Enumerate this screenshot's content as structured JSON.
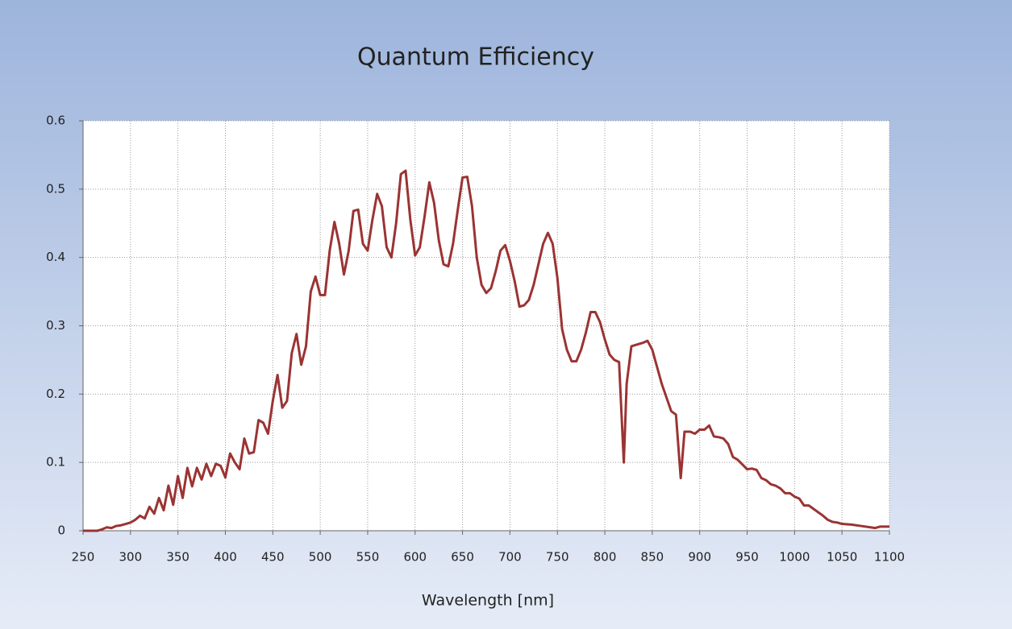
{
  "chart_data": {
    "type": "line",
    "title": "Quantum Efficiency",
    "x_label": "Wavelength [nm]",
    "x": [
      250,
      265,
      270,
      275,
      280,
      285,
      290,
      295,
      300,
      305,
      310,
      315,
      320,
      325,
      330,
      335,
      340,
      345,
      350,
      355,
      360,
      365,
      370,
      375,
      380,
      385,
      390,
      395,
      400,
      405,
      410,
      415,
      420,
      425,
      430,
      435,
      440,
      445,
      450,
      455,
      460,
      465,
      470,
      475,
      480,
      485,
      490,
      495,
      500,
      505,
      510,
      515,
      520,
      525,
      530,
      535,
      540,
      545,
      550,
      555,
      560,
      565,
      570,
      575,
      580,
      585,
      590,
      595,
      600,
      605,
      610,
      615,
      620,
      625,
      630,
      635,
      640,
      645,
      650,
      655,
      660,
      665,
      670,
      675,
      680,
      685,
      690,
      695,
      700,
      705,
      710,
      715,
      720,
      725,
      730,
      735,
      740,
      745,
      750,
      755,
      760,
      765,
      770,
      775,
      780,
      785,
      790,
      795,
      800,
      805,
      810,
      815,
      820,
      823,
      828,
      835,
      840,
      845,
      850,
      855,
      860,
      865,
      870,
      875,
      880,
      884,
      890,
      895,
      900,
      905,
      910,
      915,
      920,
      925,
      930,
      935,
      940,
      945,
      950,
      955,
      960,
      965,
      970,
      975,
      980,
      985,
      990,
      995,
      1000,
      1005,
      1010,
      1015,
      1020,
      1025,
      1030,
      1035,
      1040,
      1045,
      1050,
      1060,
      1070,
      1080,
      1085,
      1090,
      1100
    ],
    "values": [
      0,
      0,
      0.002,
      0.005,
      0.004,
      0.007,
      0.008,
      0.01,
      0.012,
      0.016,
      0.022,
      0.018,
      0.035,
      0.025,
      0.048,
      0.03,
      0.066,
      0.038,
      0.08,
      0.048,
      0.092,
      0.065,
      0.092,
      0.075,
      0.098,
      0.08,
      0.098,
      0.095,
      0.078,
      0.113,
      0.1,
      0.09,
      0.135,
      0.113,
      0.115,
      0.162,
      0.158,
      0.142,
      0.19,
      0.228,
      0.18,
      0.19,
      0.26,
      0.288,
      0.243,
      0.27,
      0.35,
      0.372,
      0.345,
      0.345,
      0.41,
      0.452,
      0.42,
      0.375,
      0.41,
      0.468,
      0.47,
      0.42,
      0.41,
      0.455,
      0.493,
      0.475,
      0.415,
      0.4,
      0.45,
      0.522,
      0.527,
      0.455,
      0.403,
      0.415,
      0.46,
      0.51,
      0.48,
      0.425,
      0.39,
      0.387,
      0.42,
      0.47,
      0.517,
      0.518,
      0.475,
      0.4,
      0.36,
      0.348,
      0.355,
      0.38,
      0.41,
      0.418,
      0.395,
      0.365,
      0.328,
      0.33,
      0.338,
      0.36,
      0.39,
      0.42,
      0.436,
      0.42,
      0.37,
      0.295,
      0.265,
      0.248,
      0.248,
      0.265,
      0.29,
      0.32,
      0.32,
      0.305,
      0.28,
      0.258,
      0.25,
      0.247,
      0.1,
      0.215,
      0.27,
      0.273,
      0.275,
      0.278,
      0.265,
      0.24,
      0.215,
      0.195,
      0.175,
      0.17,
      0.077,
      0.145,
      0.145,
      0.142,
      0.148,
      0.148,
      0.154,
      0.138,
      0.137,
      0.135,
      0.127,
      0.108,
      0.104,
      0.097,
      0.09,
      0.091,
      0.089,
      0.077,
      0.074,
      0.068,
      0.066,
      0.062,
      0.055,
      0.055,
      0.05,
      0.047,
      0.037,
      0.037,
      0.032,
      0.027,
      0.022,
      0.016,
      0.013,
      0.012,
      0.01,
      0.009,
      0.007,
      0.005,
      0.004,
      0.006,
      0.006
    ],
    "color": "#9b3333",
    "xlim": [
      250,
      1100
    ],
    "xticks": [
      250,
      300,
      350,
      400,
      450,
      500,
      550,
      600,
      650,
      700,
      750,
      800,
      850,
      900,
      950,
      1000,
      1050,
      1100
    ],
    "ylim": [
      0,
      0.6
    ],
    "yticks": [
      0,
      0.1,
      0.2,
      0.3,
      0.4,
      0.5,
      0.6
    ],
    "grid": true
  }
}
